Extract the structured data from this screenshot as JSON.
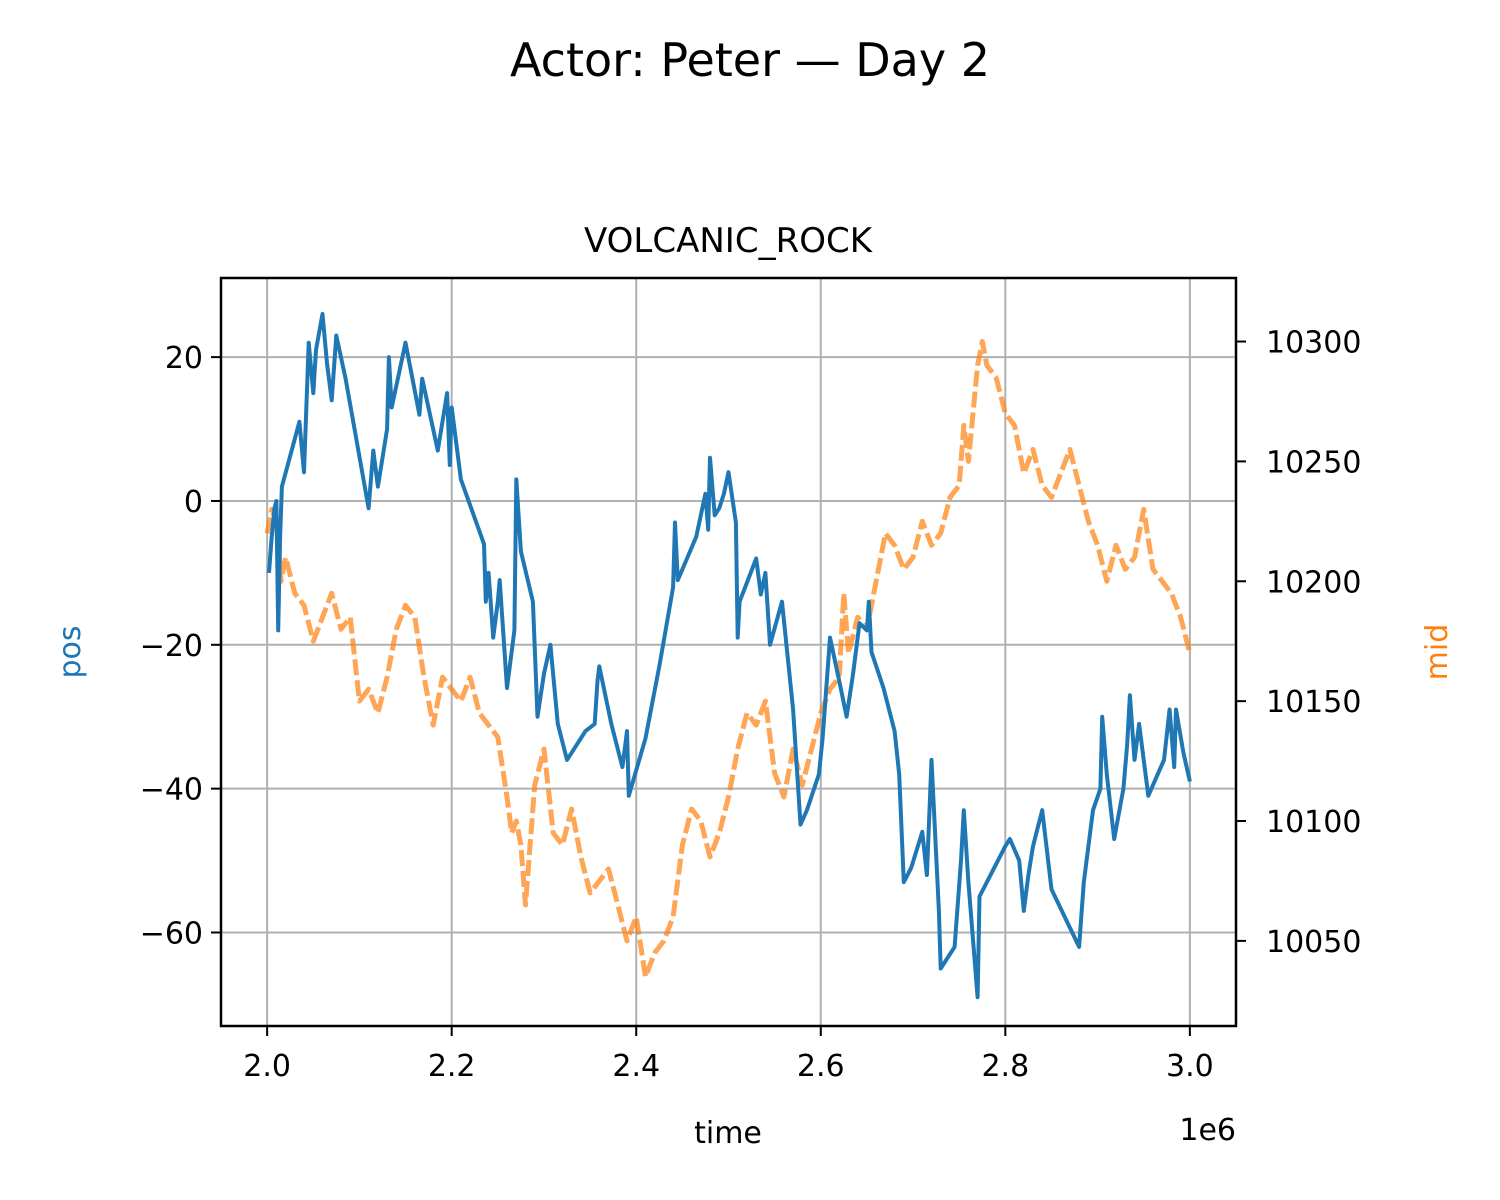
{
  "chart_data": {
    "type": "line",
    "suptitle": "Actor: Peter — Day 2",
    "title": "VOLCANIC_ROCK",
    "xlabel": "time",
    "x_offset_label": "1e6",
    "y_left_label": "pos",
    "y_right_label": "mid",
    "xlim": [
      1.95,
      3.05
    ],
    "ylim_left": [
      -73,
      31
    ],
    "ylim_right": [
      10014.5,
      10326.5
    ],
    "x_ticks": [
      2.0,
      2.2,
      2.4,
      2.6,
      2.8,
      3.0
    ],
    "x_tick_labels": [
      "2.0",
      "2.2",
      "2.4",
      "2.6",
      "2.8",
      "3.0"
    ],
    "y_left_ticks": [
      20,
      0,
      -20,
      -40,
      -60
    ],
    "y_left_tick_labels": [
      "20",
      "0",
      "−20",
      "−40",
      "−60"
    ],
    "y_right_ticks": [
      10300,
      10250,
      10200,
      10150,
      10100,
      10050
    ],
    "y_right_tick_labels": [
      "10300",
      "10250",
      "10200",
      "10150",
      "10100",
      "10050"
    ],
    "grid": true,
    "colors": {
      "pos": "#1f77b4",
      "mid": "#ff7f0e"
    },
    "series": [
      {
        "axis": "left",
        "style": "solid",
        "points": [
          [
            2.002,
            -10
          ],
          [
            2.005,
            -5
          ],
          [
            2.008,
            -1
          ],
          [
            2.01,
            0
          ],
          [
            2.012,
            -18
          ],
          [
            2.014,
            -5
          ],
          [
            2.016,
            2
          ],
          [
            2.035,
            11
          ],
          [
            2.04,
            4
          ],
          [
            2.045,
            22
          ],
          [
            2.05,
            15
          ],
          [
            2.053,
            21
          ],
          [
            2.06,
            26
          ],
          [
            2.065,
            19
          ],
          [
            2.07,
            14
          ],
          [
            2.075,
            23
          ],
          [
            2.085,
            17
          ],
          [
            2.11,
            -1
          ],
          [
            2.115,
            7
          ],
          [
            2.12,
            2
          ],
          [
            2.13,
            10
          ],
          [
            2.132,
            20
          ],
          [
            2.135,
            13
          ],
          [
            2.15,
            22
          ],
          [
            2.165,
            12
          ],
          [
            2.168,
            17
          ],
          [
            2.185,
            7
          ],
          [
            2.195,
            15
          ],
          [
            2.198,
            5
          ],
          [
            2.2,
            13
          ],
          [
            2.21,
            3
          ],
          [
            2.235,
            -6
          ],
          [
            2.237,
            -14
          ],
          [
            2.24,
            -10
          ],
          [
            2.245,
            -19
          ],
          [
            2.25,
            -14
          ],
          [
            2.252,
            -11
          ],
          [
            2.26,
            -26
          ],
          [
            2.268,
            -18
          ],
          [
            2.27,
            3
          ],
          [
            2.275,
            -7
          ],
          [
            2.288,
            -14
          ],
          [
            2.293,
            -30
          ],
          [
            2.3,
            -24
          ],
          [
            2.307,
            -20
          ],
          [
            2.315,
            -31
          ],
          [
            2.325,
            -36
          ],
          [
            2.345,
            -32
          ],
          [
            2.355,
            -31
          ],
          [
            2.358,
            -25
          ],
          [
            2.36,
            -23
          ],
          [
            2.373,
            -31
          ],
          [
            2.385,
            -37
          ],
          [
            2.388,
            -34
          ],
          [
            2.39,
            -32
          ],
          [
            2.392,
            -41
          ],
          [
            2.41,
            -33
          ],
          [
            2.425,
            -23
          ],
          [
            2.44,
            -12
          ],
          [
            2.442,
            -3
          ],
          [
            2.445,
            -11
          ],
          [
            2.465,
            -5
          ],
          [
            2.475,
            1
          ],
          [
            2.478,
            -4
          ],
          [
            2.48,
            6
          ],
          [
            2.485,
            -2
          ],
          [
            2.49,
            -1
          ],
          [
            2.495,
            1
          ],
          [
            2.5,
            4
          ],
          [
            2.508,
            -3
          ],
          [
            2.51,
            -19
          ],
          [
            2.512,
            -14
          ],
          [
            2.53,
            -8
          ],
          [
            2.535,
            -13
          ],
          [
            2.54,
            -10
          ],
          [
            2.545,
            -20
          ],
          [
            2.558,
            -14
          ],
          [
            2.57,
            -29
          ],
          [
            2.578,
            -45
          ],
          [
            2.585,
            -43
          ],
          [
            2.598,
            -38
          ],
          [
            2.602,
            -33
          ],
          [
            2.61,
            -19
          ],
          [
            2.62,
            -25
          ],
          [
            2.628,
            -30
          ],
          [
            2.635,
            -24
          ],
          [
            2.642,
            -17
          ],
          [
            2.65,
            -18
          ],
          [
            2.652,
            -14
          ],
          [
            2.655,
            -21
          ],
          [
            2.668,
            -26
          ],
          [
            2.68,
            -32
          ],
          [
            2.685,
            -38
          ],
          [
            2.69,
            -53
          ],
          [
            2.698,
            -51
          ],
          [
            2.71,
            -46
          ],
          [
            2.715,
            -52
          ],
          [
            2.72,
            -36
          ],
          [
            2.728,
            -57
          ],
          [
            2.73,
            -65
          ],
          [
            2.745,
            -62
          ],
          [
            2.752,
            -50
          ],
          [
            2.755,
            -43
          ],
          [
            2.76,
            -53
          ],
          [
            2.77,
            -69
          ],
          [
            2.772,
            -55
          ],
          [
            2.8,
            -48
          ],
          [
            2.805,
            -47
          ],
          [
            2.815,
            -50
          ],
          [
            2.82,
            -57
          ],
          [
            2.825,
            -52
          ],
          [
            2.83,
            -48
          ],
          [
            2.84,
            -43
          ],
          [
            2.85,
            -54
          ],
          [
            2.865,
            -58
          ],
          [
            2.88,
            -62
          ],
          [
            2.885,
            -53
          ],
          [
            2.895,
            -43
          ],
          [
            2.903,
            -40
          ],
          [
            2.905,
            -30
          ],
          [
            2.91,
            -38
          ],
          [
            2.918,
            -47
          ],
          [
            2.928,
            -40
          ],
          [
            2.932,
            -34
          ],
          [
            2.935,
            -27
          ],
          [
            2.94,
            -36
          ],
          [
            2.945,
            -31
          ],
          [
            2.955,
            -41
          ],
          [
            2.972,
            -36
          ],
          [
            2.978,
            -29
          ],
          [
            2.983,
            -37
          ],
          [
            2.985,
            -29
          ],
          [
            2.993,
            -35
          ],
          [
            3.0,
            -39
          ]
        ]
      },
      {
        "axis": "right",
        "style": "dashed",
        "points": [
          [
            2.0,
            10220
          ],
          [
            2.005,
            10230
          ],
          [
            2.01,
            10225
          ],
          [
            2.015,
            10200
          ],
          [
            2.02,
            10210
          ],
          [
            2.03,
            10195
          ],
          [
            2.04,
            10190
          ],
          [
            2.05,
            10175
          ],
          [
            2.06,
            10185
          ],
          [
            2.07,
            10195
          ],
          [
            2.08,
            10180
          ],
          [
            2.09,
            10185
          ],
          [
            2.1,
            10150
          ],
          [
            2.11,
            10155
          ],
          [
            2.12,
            10145
          ],
          [
            2.13,
            10160
          ],
          [
            2.14,
            10180
          ],
          [
            2.15,
            10190
          ],
          [
            2.16,
            10185
          ],
          [
            2.17,
            10160
          ],
          [
            2.18,
            10140
          ],
          [
            2.19,
            10160
          ],
          [
            2.2,
            10155
          ],
          [
            2.21,
            10150
          ],
          [
            2.22,
            10160
          ],
          [
            2.23,
            10145
          ],
          [
            2.24,
            10140
          ],
          [
            2.25,
            10135
          ],
          [
            2.26,
            10110
          ],
          [
            2.265,
            10095
          ],
          [
            2.27,
            10100
          ],
          [
            2.275,
            10090
          ],
          [
            2.28,
            10065
          ],
          [
            2.29,
            10115
          ],
          [
            2.3,
            10130
          ],
          [
            2.31,
            10095
          ],
          [
            2.32,
            10090
          ],
          [
            2.33,
            10105
          ],
          [
            2.34,
            10085
          ],
          [
            2.35,
            10070
          ],
          [
            2.36,
            10075
          ],
          [
            2.37,
            10080
          ],
          [
            2.38,
            10065
          ],
          [
            2.39,
            10050
          ],
          [
            2.4,
            10060
          ],
          [
            2.41,
            10035
          ],
          [
            2.42,
            10045
          ],
          [
            2.43,
            10050
          ],
          [
            2.44,
            10060
          ],
          [
            2.45,
            10090
          ],
          [
            2.46,
            10105
          ],
          [
            2.47,
            10100
          ],
          [
            2.48,
            10085
          ],
          [
            2.49,
            10095
          ],
          [
            2.5,
            10110
          ],
          [
            2.51,
            10130
          ],
          [
            2.52,
            10145
          ],
          [
            2.53,
            10140
          ],
          [
            2.54,
            10150
          ],
          [
            2.55,
            10120
          ],
          [
            2.56,
            10110
          ],
          [
            2.57,
            10130
          ],
          [
            2.58,
            10115
          ],
          [
            2.59,
            10130
          ],
          [
            2.6,
            10145
          ],
          [
            2.61,
            10155
          ],
          [
            2.62,
            10160
          ],
          [
            2.625,
            10195
          ],
          [
            2.63,
            10170
          ],
          [
            2.64,
            10185
          ],
          [
            2.65,
            10180
          ],
          [
            2.66,
            10200
          ],
          [
            2.67,
            10220
          ],
          [
            2.68,
            10215
          ],
          [
            2.69,
            10205
          ],
          [
            2.7,
            10210
          ],
          [
            2.71,
            10225
          ],
          [
            2.72,
            10215
          ],
          [
            2.73,
            10220
          ],
          [
            2.74,
            10235
          ],
          [
            2.75,
            10240
          ],
          [
            2.755,
            10265
          ],
          [
            2.76,
            10250
          ],
          [
            2.77,
            10290
          ],
          [
            2.775,
            10300
          ],
          [
            2.78,
            10290
          ],
          [
            2.79,
            10285
          ],
          [
            2.8,
            10270
          ],
          [
            2.81,
            10265
          ],
          [
            2.82,
            10245
          ],
          [
            2.83,
            10255
          ],
          [
            2.84,
            10240
          ],
          [
            2.85,
            10235
          ],
          [
            2.86,
            10245
          ],
          [
            2.87,
            10255
          ],
          [
            2.88,
            10240
          ],
          [
            2.89,
            10225
          ],
          [
            2.9,
            10215
          ],
          [
            2.91,
            10200
          ],
          [
            2.92,
            10215
          ],
          [
            2.93,
            10205
          ],
          [
            2.94,
            10210
          ],
          [
            2.95,
            10230
          ],
          [
            2.96,
            10205
          ],
          [
            2.97,
            10200
          ],
          [
            2.98,
            10195
          ],
          [
            2.99,
            10185
          ],
          [
            3.0,
            10170
          ]
        ]
      }
    ]
  }
}
